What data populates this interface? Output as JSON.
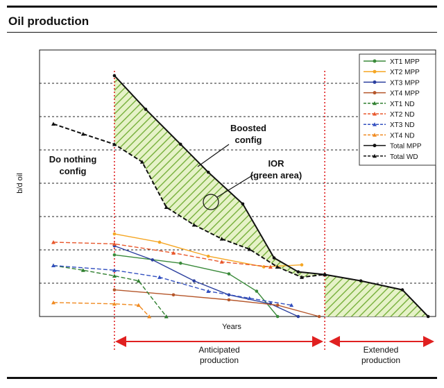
{
  "chart_data": {
    "type": "line",
    "title": "Oil production",
    "y_label": "b/d oil",
    "x_label": "Years",
    "xlim": [
      0,
      100
    ],
    "ylim": [
      0,
      8
    ],
    "grid": true,
    "vlines": [
      18.9,
      72
    ],
    "legend_position": "upper right",
    "annotations": {
      "do_nothing": [
        "Do nothing",
        "config"
      ],
      "boosted": [
        "Boosted",
        "config"
      ],
      "ior": [
        "IOR",
        "(green area)"
      ],
      "anticipated": [
        "Anticipated",
        "production"
      ],
      "extended": [
        "Extended",
        "production"
      ]
    },
    "series": [
      {
        "name": "XT1 MPP",
        "color": "#3a8a3a",
        "marker": "circle",
        "line_style": "solid",
        "x": [
          18.9,
          35.6,
          47.8,
          54.8,
          60.1
        ],
        "values": [
          1.85,
          1.6,
          1.28,
          0.76,
          0
        ]
      },
      {
        "name": "XT2 MPP",
        "color": "#f5a623",
        "marker": "circle",
        "line_style": "solid",
        "x": [
          18.9,
          30.3,
          42.6,
          56.6,
          66.2
        ],
        "values": [
          2.48,
          2.23,
          1.81,
          1.49,
          1.55
        ]
      },
      {
        "name": "XT3 MPP",
        "color": "#2b3f9e",
        "marker": "circle",
        "line_style": "solid",
        "x": [
          18.9,
          28.5,
          39,
          47.8,
          58.3,
          65.3
        ],
        "values": [
          2.12,
          1.7,
          1.07,
          0.65,
          0.38,
          0
        ]
      },
      {
        "name": "XT4 MPP",
        "color": "#b5562a",
        "marker": "circle",
        "line_style": "solid",
        "x": [
          18.9,
          33.8,
          47.8,
          60.1,
          70.6
        ],
        "values": [
          0.8,
          0.65,
          0.5,
          0.34,
          0
        ]
      },
      {
        "name": "XT1 ND",
        "color": "#2f7f2f",
        "marker": "triangle",
        "line_style": "dashed",
        "x": [
          3.5,
          11,
          18.9,
          25,
          32
        ],
        "values": [
          1.53,
          1.39,
          1.22,
          1.07,
          0
        ]
      },
      {
        "name": "XT2 ND",
        "color": "#e8562a",
        "marker": "triangle",
        "line_style": "dashed",
        "x": [
          3.5,
          18.9,
          33.8,
          46,
          58.3
        ],
        "values": [
          2.23,
          2.18,
          1.91,
          1.64,
          1.49
        ]
      },
      {
        "name": "XT3 ND",
        "color": "#3350c0",
        "marker": "triangle",
        "line_style": "dashed",
        "x": [
          3.5,
          18.9,
          30.3,
          42.6,
          53,
          63.6
        ],
        "values": [
          1.53,
          1.39,
          1.18,
          0.76,
          0.55,
          0.34
        ]
      },
      {
        "name": "XT4 ND",
        "color": "#f08a20",
        "marker": "triangle",
        "line_style": "dashed",
        "x": [
          3.5,
          18.9,
          25,
          27.7
        ],
        "values": [
          0.42,
          0.38,
          0.34,
          0
        ]
      },
      {
        "name": "Total MPP",
        "color": "#111111",
        "marker": "circle",
        "line_style": "solid",
        "x": [
          18.9,
          26.8,
          35.6,
          42.6,
          51.3,
          59.2,
          65.3,
          72,
          81.1,
          91.6,
          98.1
        ],
        "values": [
          7.23,
          6.22,
          5.17,
          4.33,
          3.38,
          1.76,
          1.34,
          1.26,
          1.07,
          0.8,
          0
        ]
      },
      {
        "name": "Total WD",
        "color": "#111111",
        "marker": "triangle",
        "line_style": "dashed",
        "x": [
          3.5,
          11,
          18.9,
          25.9,
          32,
          39,
          46,
          53,
          60,
          66.2,
          72
        ],
        "values": [
          5.78,
          5.48,
          5.17,
          4.64,
          3.28,
          2.75,
          2.33,
          2.02,
          1.49,
          1.18,
          1.26
        ]
      }
    ]
  }
}
